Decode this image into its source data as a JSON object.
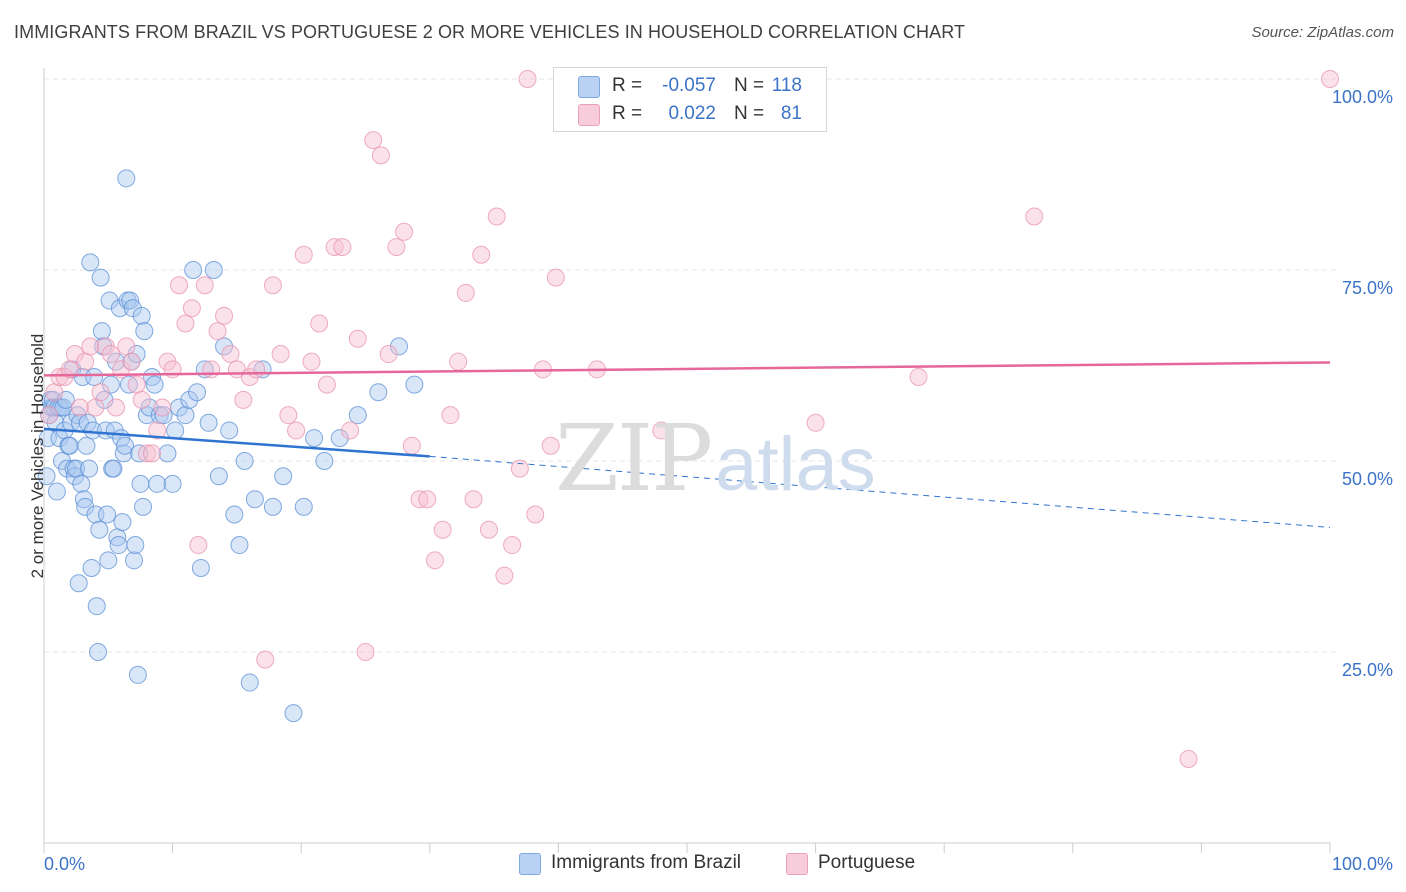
{
  "title": "IMMIGRANTS FROM BRAZIL VS PORTUGUESE 2 OR MORE VEHICLES IN HOUSEHOLD CORRELATION CHART",
  "source": "Source: ZipAtlas.com",
  "watermark": {
    "zip": "ZIP",
    "atlas": "atlas"
  },
  "legend": {
    "rows": [
      {
        "r_label": "R =",
        "r_value": "-0.057",
        "n_label": "N =",
        "n_value": "118"
      },
      {
        "r_label": "R =",
        "r_value": "0.022",
        "n_label": "N =",
        "n_value": "81"
      }
    ]
  },
  "bottom_legend": [
    "Immigrants from Brazil",
    "Portuguese"
  ],
  "colors": {
    "brazil_fill": "#a9c7f0",
    "brazil_stroke": "#5b8fd6",
    "brazil_line": "#2f74d0",
    "portuguese_fill": "#f6bfd0",
    "portuguese_stroke": "#e891ae",
    "portuguese_line": "#e6679a",
    "axis_text": "#3b73c8",
    "grid": "#e5e5e5"
  },
  "chart_data": {
    "type": "scatter",
    "title": "IMMIGRANTS FROM BRAZIL VS PORTUGUESE 2 OR MORE VEHICLES IN HOUSEHOLD CORRELATION CHART",
    "xlabel": "",
    "ylabel": "2 or more Vehicles in Household",
    "xlim": [
      0,
      100
    ],
    "ylim": [
      0,
      103
    ],
    "x_tick_labels": [
      "0.0%",
      "100.0%"
    ],
    "y_ticks": [
      25,
      50,
      75,
      100
    ],
    "y_tick_labels": [
      "25.0%",
      "50.0%",
      "75.0%",
      "100.0%"
    ],
    "grid": true,
    "series": [
      {
        "name": "Immigrants from Brazil",
        "R": -0.057,
        "N": 118,
        "trend": {
          "x": [
            0,
            30
          ],
          "y": [
            54.2,
            50.6
          ],
          "dashed_to": [
            100,
            41.3
          ]
        },
        "points": [
          [
            0.2,
            48
          ],
          [
            0.3,
            53
          ],
          [
            0.4,
            56
          ],
          [
            0.5,
            58
          ],
          [
            0.6,
            57
          ],
          [
            0.7,
            58
          ],
          [
            0.8,
            57
          ],
          [
            0.9,
            55
          ],
          [
            1.0,
            46
          ],
          [
            1.1,
            57
          ],
          [
            1.2,
            53
          ],
          [
            1.3,
            57
          ],
          [
            1.4,
            50
          ],
          [
            1.5,
            57
          ],
          [
            1.6,
            54
          ],
          [
            1.7,
            58
          ],
          [
            1.8,
            49
          ],
          [
            1.9,
            52
          ],
          [
            2.0,
            52
          ],
          [
            2.1,
            55
          ],
          [
            2.2,
            62
          ],
          [
            2.3,
            49
          ],
          [
            2.4,
            48
          ],
          [
            2.5,
            49
          ],
          [
            2.6,
            56
          ],
          [
            2.7,
            34
          ],
          [
            2.8,
            55
          ],
          [
            2.9,
            47
          ],
          [
            3.0,
            61
          ],
          [
            3.1,
            45
          ],
          [
            3.2,
            44
          ],
          [
            3.3,
            52
          ],
          [
            3.4,
            55
          ],
          [
            3.5,
            49
          ],
          [
            3.6,
            76
          ],
          [
            3.7,
            36
          ],
          [
            3.8,
            54
          ],
          [
            3.9,
            61
          ],
          [
            4.0,
            43
          ],
          [
            4.1,
            31
          ],
          [
            4.2,
            25
          ],
          [
            4.3,
            41
          ],
          [
            4.4,
            74
          ],
          [
            4.5,
            67
          ],
          [
            4.6,
            65
          ],
          [
            4.7,
            58
          ],
          [
            4.8,
            54
          ],
          [
            4.9,
            43
          ],
          [
            5.0,
            37
          ],
          [
            5.1,
            71
          ],
          [
            5.2,
            60
          ],
          [
            5.3,
            49
          ],
          [
            5.4,
            49
          ],
          [
            5.5,
            54
          ],
          [
            5.6,
            63
          ],
          [
            5.7,
            40
          ],
          [
            5.8,
            39
          ],
          [
            5.9,
            70
          ],
          [
            6.0,
            53
          ],
          [
            6.1,
            42
          ],
          [
            6.2,
            51
          ],
          [
            6.3,
            52
          ],
          [
            6.4,
            87
          ],
          [
            6.5,
            71
          ],
          [
            6.6,
            60
          ],
          [
            6.7,
            71
          ],
          [
            6.8,
            63
          ],
          [
            6.9,
            70
          ],
          [
            7.0,
            37
          ],
          [
            7.1,
            39
          ],
          [
            7.2,
            64
          ],
          [
            7.3,
            22
          ],
          [
            7.4,
            51
          ],
          [
            7.5,
            47
          ],
          [
            7.6,
            69
          ],
          [
            7.7,
            44
          ],
          [
            7.8,
            67
          ],
          [
            8.0,
            56
          ],
          [
            8.2,
            57
          ],
          [
            8.4,
            61
          ],
          [
            8.6,
            60
          ],
          [
            8.8,
            47
          ],
          [
            9.0,
            56
          ],
          [
            9.3,
            56
          ],
          [
            9.6,
            51
          ],
          [
            10.0,
            47
          ],
          [
            10.2,
            54
          ],
          [
            10.5,
            57
          ],
          [
            11.0,
            56
          ],
          [
            11.3,
            58
          ],
          [
            11.6,
            75
          ],
          [
            11.9,
            59
          ],
          [
            12.2,
            36
          ],
          [
            12.5,
            62
          ],
          [
            12.8,
            55
          ],
          [
            13.2,
            75
          ],
          [
            13.6,
            48
          ],
          [
            14.0,
            65
          ],
          [
            14.4,
            54
          ],
          [
            14.8,
            43
          ],
          [
            15.2,
            39
          ],
          [
            15.6,
            50
          ],
          [
            16.0,
            21
          ],
          [
            16.4,
            45
          ],
          [
            17.0,
            62
          ],
          [
            17.8,
            44
          ],
          [
            18.6,
            48
          ],
          [
            19.4,
            17
          ],
          [
            20.2,
            44
          ],
          [
            21.0,
            53
          ],
          [
            21.8,
            50
          ],
          [
            23.0,
            53
          ],
          [
            24.4,
            56
          ],
          [
            26.0,
            59
          ],
          [
            27.6,
            65
          ],
          [
            28.8,
            60
          ]
        ]
      },
      {
        "name": "Portuguese",
        "R": 0.022,
        "N": 81,
        "trend": {
          "x": [
            0,
            100
          ],
          "y": [
            61.2,
            62.9
          ]
        },
        "points": [
          [
            0.4,
            56
          ],
          [
            0.8,
            59
          ],
          [
            1.2,
            61
          ],
          [
            1.6,
            61
          ],
          [
            2.0,
            62
          ],
          [
            2.4,
            64
          ],
          [
            2.8,
            57
          ],
          [
            3.2,
            63
          ],
          [
            3.6,
            65
          ],
          [
            4.0,
            57
          ],
          [
            4.4,
            59
          ],
          [
            4.8,
            65
          ],
          [
            5.2,
            64
          ],
          [
            5.6,
            57
          ],
          [
            6.0,
            62
          ],
          [
            6.4,
            65
          ],
          [
            6.8,
            63
          ],
          [
            7.2,
            60
          ],
          [
            7.6,
            58
          ],
          [
            8.0,
            51
          ],
          [
            8.4,
            51
          ],
          [
            8.8,
            54
          ],
          [
            9.2,
            57
          ],
          [
            9.6,
            63
          ],
          [
            10.0,
            62
          ],
          [
            10.5,
            73
          ],
          [
            11.0,
            68
          ],
          [
            11.5,
            70
          ],
          [
            12.0,
            39
          ],
          [
            12.5,
            73
          ],
          [
            13.0,
            62
          ],
          [
            13.5,
            67
          ],
          [
            14.0,
            69
          ],
          [
            14.5,
            64
          ],
          [
            15.0,
            62
          ],
          [
            15.5,
            58
          ],
          [
            16.0,
            61
          ],
          [
            16.5,
            62
          ],
          [
            17.2,
            24
          ],
          [
            17.8,
            73
          ],
          [
            18.4,
            64
          ],
          [
            19.0,
            56
          ],
          [
            19.6,
            54
          ],
          [
            20.2,
            77
          ],
          [
            20.8,
            63
          ],
          [
            21.4,
            68
          ],
          [
            22.0,
            60
          ],
          [
            22.6,
            78
          ],
          [
            23.2,
            78
          ],
          [
            23.8,
            54
          ],
          [
            24.4,
            66
          ],
          [
            25.0,
            25
          ],
          [
            25.6,
            92
          ],
          [
            26.2,
            90
          ],
          [
            26.8,
            64
          ],
          [
            27.4,
            78
          ],
          [
            28.0,
            80
          ],
          [
            28.6,
            52
          ],
          [
            29.2,
            45
          ],
          [
            29.8,
            45
          ],
          [
            30.4,
            37
          ],
          [
            31.0,
            41
          ],
          [
            31.6,
            56
          ],
          [
            32.2,
            63
          ],
          [
            32.8,
            72
          ],
          [
            33.4,
            45
          ],
          [
            34.0,
            77
          ],
          [
            34.6,
            41
          ],
          [
            35.2,
            82
          ],
          [
            35.8,
            35
          ],
          [
            36.4,
            39
          ],
          [
            37.0,
            49
          ],
          [
            37.6,
            100
          ],
          [
            38.2,
            43
          ],
          [
            38.8,
            62
          ],
          [
            39.4,
            52
          ],
          [
            39.8,
            74
          ],
          [
            43.0,
            62
          ],
          [
            48.0,
            54
          ],
          [
            60.0,
            55
          ],
          [
            68.0,
            61
          ],
          [
            77.0,
            82
          ],
          [
            89.0,
            11
          ],
          [
            100.0,
            100
          ]
        ]
      }
    ]
  }
}
